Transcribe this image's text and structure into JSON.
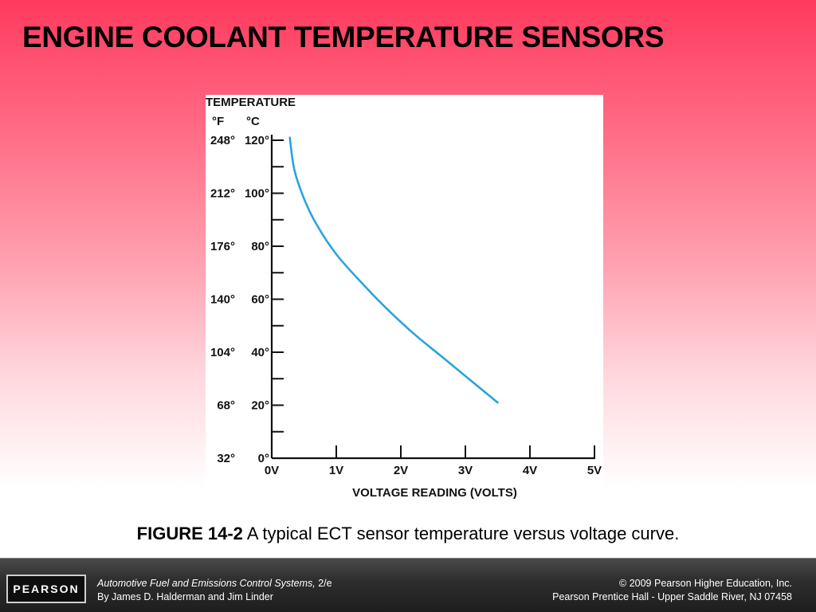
{
  "slide": {
    "title": "ENGINE COOLANT TEMPERATURE SENSORS"
  },
  "caption": {
    "figure_number": "FIGURE 14-2",
    "text": "A typical ECT sensor temperature versus voltage curve."
  },
  "footer": {
    "logo_text": "PEARSON",
    "book_title": "Automotive Fuel and Emissions Control Systems,",
    "edition": " 2/e",
    "authors": "By James D. Halderman and Jim Linder",
    "copyright": "© 2009 Pearson Higher Education, Inc.",
    "publisher": "Pearson Prentice Hall - Upper Saddle River, NJ 07458"
  },
  "chart_data": {
    "type": "line",
    "title": "",
    "ylabel": "TEMPERATURE",
    "y_unit_labels": [
      "°F",
      "°C"
    ],
    "xlabel": "VOLTAGE READING (VOLTS)",
    "xlim": [
      0,
      5
    ],
    "ylim": [
      0,
      120
    ],
    "x_ticks": [
      {
        "value": 0,
        "label": "0V"
      },
      {
        "value": 1,
        "label": "1V"
      },
      {
        "value": 2,
        "label": "2V"
      },
      {
        "value": 3,
        "label": "3V"
      },
      {
        "value": 4,
        "label": "4V"
      },
      {
        "value": 5,
        "label": "5V"
      }
    ],
    "y_ticks": [
      {
        "value": 0,
        "label_f": "32°",
        "label_c": "0°"
      },
      {
        "value": 20,
        "label_f": "68°",
        "label_c": "20°"
      },
      {
        "value": 40,
        "label_f": "104°",
        "label_c": "40°"
      },
      {
        "value": 60,
        "label_f": "140°",
        "label_c": "60°"
      },
      {
        "value": 80,
        "label_f": "176°",
        "label_c": "80°"
      },
      {
        "value": 100,
        "label_f": "212°",
        "label_c": "100°"
      },
      {
        "value": 120,
        "label_f": "248°",
        "label_c": "120°"
      }
    ],
    "y_minor_ticks": [
      10,
      30,
      50,
      70,
      90,
      110
    ],
    "grid": false,
    "line_color": "#2aa3dd",
    "series": [
      {
        "x": [
          0.28,
          0.35,
          0.5,
          0.7,
          1.0,
          1.4,
          1.8,
          2.2,
          2.6,
          3.0,
          3.4,
          3.5
        ],
        "values": [
          121,
          109,
          98,
          88,
          77,
          66,
          56,
          47,
          39,
          31,
          23,
          21
        ]
      }
    ]
  }
}
